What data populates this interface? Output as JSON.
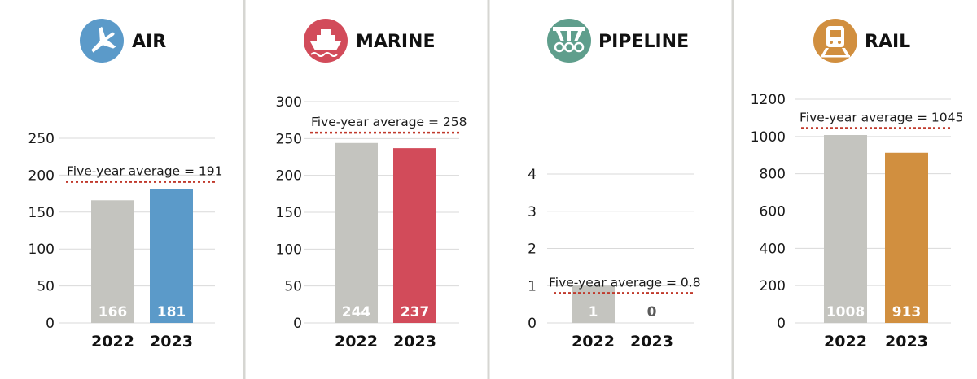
{
  "colors": {
    "base_bar": "#c4c4bf",
    "grid": "#d9d9d9",
    "avg_line": "#c0392b",
    "divider": "#d6d6d2",
    "zero_label": "#5a5a5a",
    "bar_label": "#ffffff"
  },
  "chart_data": [
    {
      "type": "bar",
      "title": "AIR",
      "icon": "airplane-icon",
      "accent": "#5b9ac9",
      "categories": [
        "2022",
        "2023"
      ],
      "values": [
        166,
        181
      ],
      "value_labels": [
        "166",
        "181"
      ],
      "average_label": "Five-year average = 191",
      "average": 191,
      "yticks": [
        "0",
        "50",
        "100",
        "150",
        "200",
        "250"
      ],
      "ylim": [
        0,
        250
      ]
    },
    {
      "type": "bar",
      "title": "MARINE",
      "icon": "ship-icon",
      "accent": "#d24b5a",
      "categories": [
        "2022",
        "2023"
      ],
      "values": [
        244,
        237
      ],
      "value_labels": [
        "244",
        "237"
      ],
      "average_label": "Five-year average = 258",
      "average": 258,
      "yticks": [
        "0",
        "50",
        "100",
        "150",
        "200",
        "250",
        "300"
      ],
      "ylim": [
        0,
        300
      ]
    },
    {
      "type": "bar",
      "title": "PIPELINE",
      "icon": "pipeline-icon",
      "accent": "#5f9e8c",
      "categories": [
        "2022",
        "2023"
      ],
      "values": [
        1,
        0
      ],
      "value_labels": [
        "1",
        "0"
      ],
      "average_label": "Five-year average = 0.8",
      "average": 0.8,
      "yticks": [
        "0",
        "1",
        "2",
        "3",
        "4"
      ],
      "ylim": [
        0,
        4
      ]
    },
    {
      "type": "bar",
      "title": "RAIL",
      "icon": "train-icon",
      "accent": "#d18f3f",
      "categories": [
        "2022",
        "2023"
      ],
      "values": [
        1008,
        913
      ],
      "value_labels": [
        "1008",
        "913"
      ],
      "average_label": "Five-year average = 1045",
      "average": 1045,
      "yticks": [
        "0",
        "200",
        "400",
        "600",
        "800",
        "1000",
        "1200"
      ],
      "ylim": [
        0,
        1200
      ]
    }
  ]
}
